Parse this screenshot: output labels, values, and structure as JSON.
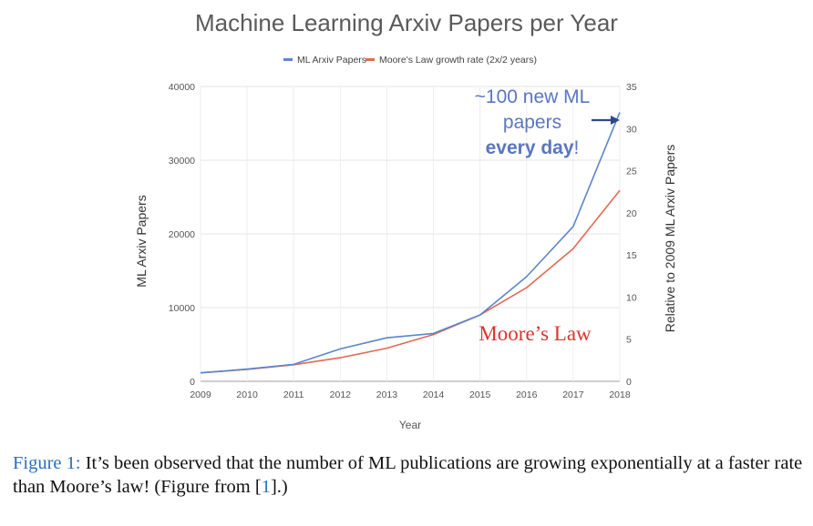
{
  "chart_data": {
    "type": "line",
    "title": "Machine Learning Arxiv Papers per Year",
    "xlabel": "Year",
    "ylabel": "ML Arxiv Papers",
    "y2label": "Relative to 2009 ML Arxiv Papers",
    "x": [
      2009,
      2010,
      2011,
      2012,
      2013,
      2014,
      2015,
      2016,
      2017,
      2018
    ],
    "ylim": [
      0,
      40000
    ],
    "y2lim": [
      0,
      35
    ],
    "yticks": [
      "0",
      "10000",
      "20000",
      "30000",
      "40000"
    ],
    "y2ticks": [
      "0",
      "5",
      "10",
      "15",
      "20",
      "25",
      "30",
      "35"
    ],
    "xticks": [
      "2009",
      "2010",
      "2011",
      "2012",
      "2013",
      "2014",
      "2015",
      "2016",
      "2017",
      "2018"
    ],
    "grid": true,
    "legend_position": "top-center",
    "series": [
      {
        "name": "ML Arxiv Papers",
        "color": "#5b86c9",
        "values": [
          1150,
          1650,
          2300,
          4400,
          5900,
          6500,
          9000,
          14200,
          21000,
          36500
        ]
      },
      {
        "name": "Moore's Law growth rate (2x/2 years)",
        "color": "#e06a55",
        "values": [
          1150,
          1600,
          2250,
          3200,
          4500,
          6350,
          9000,
          12700,
          18000,
          25900
        ]
      }
    ],
    "annotations": {
      "papers_line1": "~100 new ML",
      "papers_line2": "papers",
      "papers_line3_bold": "every day",
      "papers_line3_end": "!",
      "moore": "Moore’s Law"
    }
  },
  "caption": {
    "label": "Figure 1:",
    "text_a": " It’s been observed that the number of ML publications are growing exponentially at a faster rate than Moore’s law! (Figure from [",
    "ref": "1",
    "text_b": "].)"
  }
}
